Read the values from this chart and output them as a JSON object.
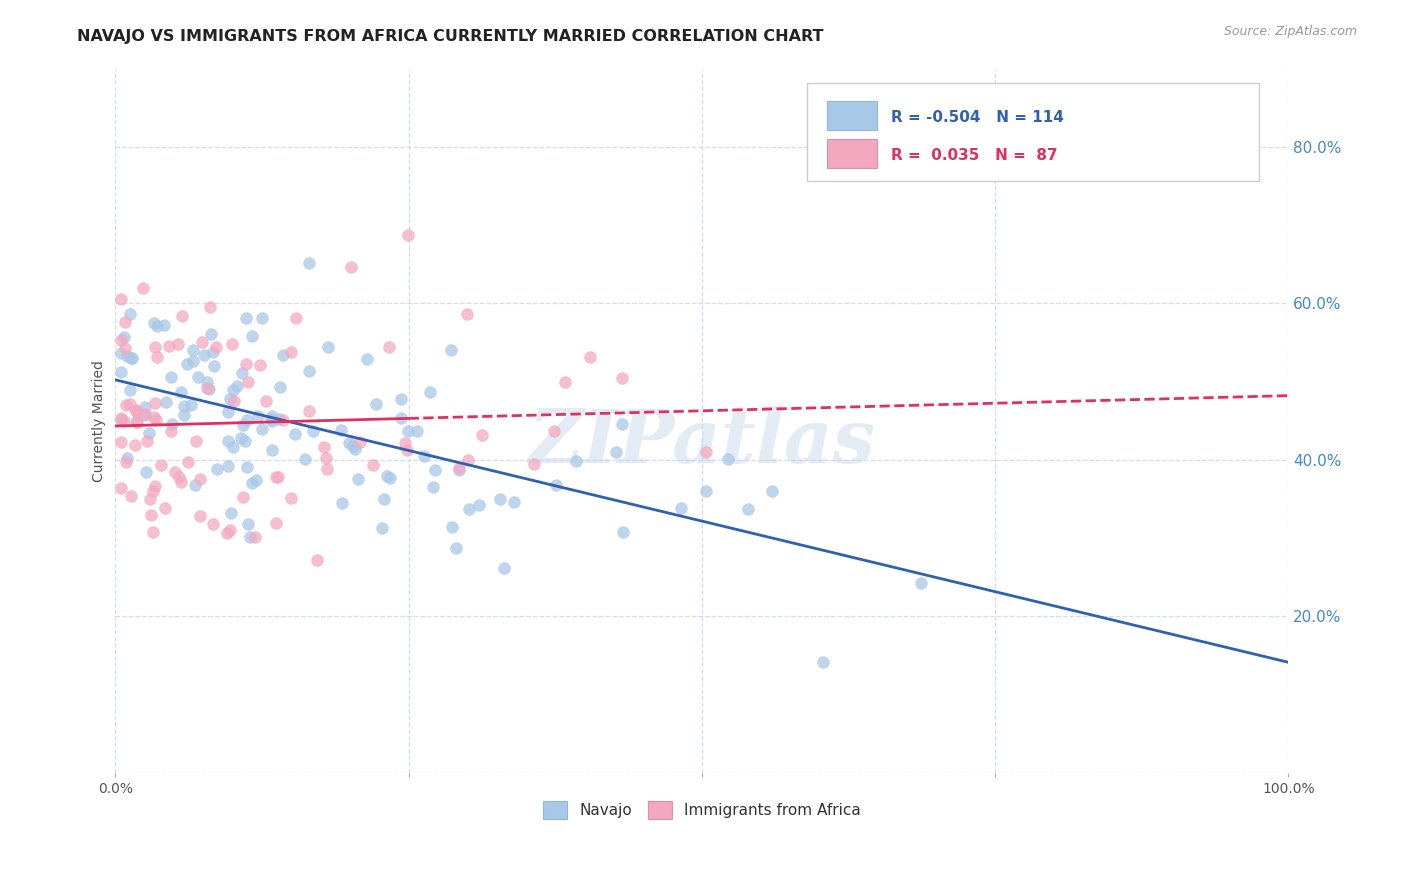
{
  "title": "NAVAJO VS IMMIGRANTS FROM AFRICA CURRENTLY MARRIED CORRELATION CHART",
  "source": "Source: ZipAtlas.com",
  "ylabel": "Currently Married",
  "navajo_color": "#a8c8e8",
  "africa_color": "#f4a8c0",
  "navajo_line_color": "#3060b0",
  "africa_line_color": "#e03060",
  "background_color": "#ffffff",
  "grid_color": "#c8d4e8",
  "watermark": "ZIPatlas",
  "xlim": [
    0.0,
    1.0
  ],
  "ylim": [
    0.0,
    0.9
  ],
  "yticks": [
    0.0,
    0.2,
    0.4,
    0.6,
    0.8
  ],
  "ytick_labels_right": [
    "",
    "20.0%",
    "40.0%",
    "60.0%",
    "80.0%"
  ],
  "navajo_R": -0.504,
  "navajo_N": 114,
  "africa_R": 0.035,
  "africa_N": 87,
  "legend_box_navajo_color": "#a8c8e8",
  "legend_box_africa_color": "#f4a8c0",
  "legend_text_navajo": "R = -0.504   N = 114",
  "legend_text_africa": "R =  0.035   N =  87",
  "legend_text_color_navajo": "#3060b0",
  "legend_text_color_africa": "#e03060"
}
